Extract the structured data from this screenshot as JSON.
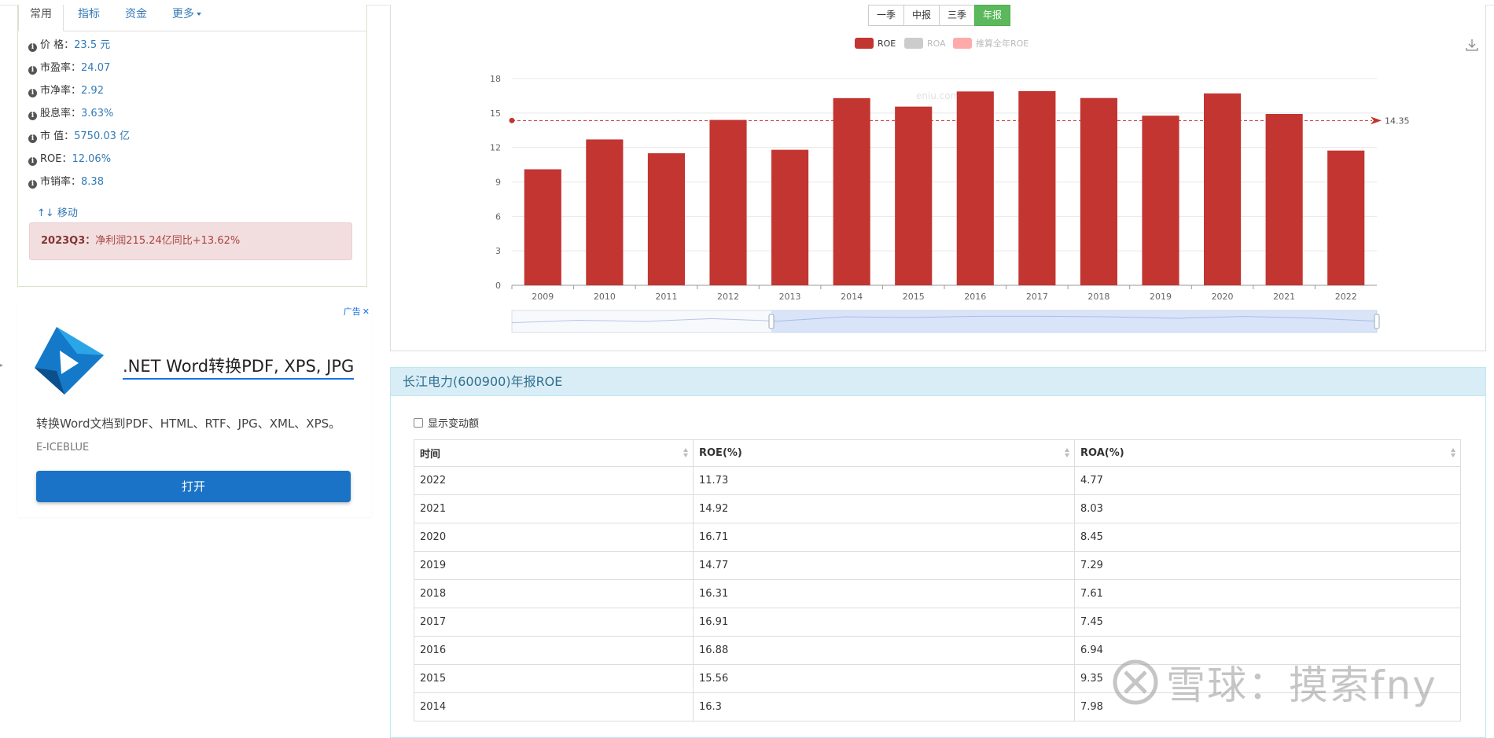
{
  "tabs": [
    {
      "label": "常用",
      "active": true
    },
    {
      "label": "指标",
      "active": false
    },
    {
      "label": "资金",
      "active": false
    },
    {
      "label": "更多",
      "active": false,
      "dropdown": true
    }
  ],
  "metrics": [
    {
      "label": "价 格：",
      "value": "23.5 元"
    },
    {
      "label": "市盈率：",
      "value": "24.07"
    },
    {
      "label": "市净率：",
      "value": "2.92"
    },
    {
      "label": "股息率：",
      "value": "3.63%"
    },
    {
      "label": "市 值：",
      "value": "5750.03 亿"
    },
    {
      "label": "ROE：",
      "value": "12.06%"
    },
    {
      "label": "市销率：",
      "value": "8.38"
    }
  ],
  "move_link": "↑↓ 移动",
  "alert": {
    "period": "2023Q3：",
    "text": "净利润215.24亿同比+13.62%"
  },
  "ad": {
    "badge": "广告",
    "close": "✕",
    "title": ".NET Word转换PDF, XPS, JPG",
    "description": "转换Word文档到PDF、HTML、RTF、JPG、XML、XPS。",
    "brand": "E-ICEBLUE",
    "button": "打开"
  },
  "period_buttons": [
    {
      "label": "一季",
      "active": false
    },
    {
      "label": "中报",
      "active": false
    },
    {
      "label": "三季",
      "active": false
    },
    {
      "label": "年报",
      "active": true
    }
  ],
  "colors": {
    "roe": "#c23531",
    "roa": "#cccccc",
    "estimated": "#ffaaaa",
    "active_green": "#5cb85c",
    "link": "#337ab7"
  },
  "chart_data": {
    "type": "bar",
    "categories": [
      "2009",
      "2010",
      "2011",
      "2012",
      "2013",
      "2014",
      "2015",
      "2016",
      "2017",
      "2018",
      "2019",
      "2020",
      "2021",
      "2022"
    ],
    "series": [
      {
        "name": "ROE",
        "values": [
          10.1,
          12.7,
          11.5,
          14.4,
          11.8,
          16.3,
          15.56,
          16.88,
          16.91,
          16.31,
          14.77,
          16.71,
          14.92,
          11.73
        ],
        "visible": true
      },
      {
        "name": "ROA",
        "visible": false
      },
      {
        "name": "推算全年ROE",
        "visible": false
      }
    ],
    "ylim": [
      0,
      18
    ],
    "yticks": [
      0,
      3,
      6,
      9,
      12,
      15,
      18
    ],
    "average_line": 14.35,
    "watermark": "eniu.com",
    "legend": "top-center",
    "grid": true
  },
  "table": {
    "title": "长江电力(600900)年报ROE",
    "checkbox_label": "显示变动额",
    "headers": [
      "时间",
      "ROE(%)",
      "ROA(%)"
    ],
    "rows": [
      [
        "2022",
        "11.73",
        "4.77"
      ],
      [
        "2021",
        "14.92",
        "8.03"
      ],
      [
        "2020",
        "16.71",
        "8.45"
      ],
      [
        "2019",
        "14.77",
        "7.29"
      ],
      [
        "2018",
        "16.31",
        "7.61"
      ],
      [
        "2017",
        "16.91",
        "7.45"
      ],
      [
        "2016",
        "16.88",
        "6.94"
      ],
      [
        "2015",
        "15.56",
        "9.35"
      ],
      [
        "2014",
        "16.3",
        "7.98"
      ]
    ]
  },
  "watermark": "雪球：摸索fny"
}
